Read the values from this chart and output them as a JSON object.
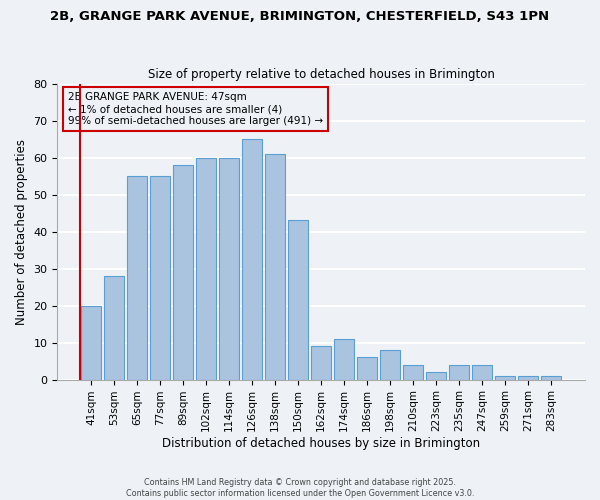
{
  "title": "2B, GRANGE PARK AVENUE, BRIMINGTON, CHESTERFIELD, S43 1PN",
  "subtitle": "Size of property relative to detached houses in Brimington",
  "xlabel": "Distribution of detached houses by size in Brimington",
  "ylabel": "Number of detached properties",
  "bar_values": [
    20,
    28,
    55,
    55,
    58,
    60,
    60,
    65,
    61,
    43,
    9,
    11,
    6,
    8,
    4,
    2,
    4,
    4,
    1,
    1,
    1
  ],
  "bin_labels": [
    "41sqm",
    "53sqm",
    "65sqm",
    "77sqm",
    "89sqm",
    "102sqm",
    "114sqm",
    "126sqm",
    "138sqm",
    "150sqm",
    "162sqm",
    "174sqm",
    "186sqm",
    "198sqm",
    "210sqm",
    "223sqm",
    "235sqm",
    "247sqm",
    "259sqm",
    "271sqm",
    "283sqm"
  ],
  "bar_color": "#aac4e0",
  "bar_edge_color": "#5a9fd4",
  "background_color": "#eef2f7",
  "grid_color": "#ffffff",
  "annotation_box_edge": "#cc0000",
  "annotation_line1": "2B GRANGE PARK AVENUE: 47sqm",
  "annotation_line2": "← 1% of detached houses are smaller (4)",
  "annotation_line3": "99% of semi-detached houses are larger (491) →",
  "marker_color": "#cc0000",
  "ylim": [
    0,
    80
  ],
  "yticks": [
    0,
    10,
    20,
    30,
    40,
    50,
    60,
    70,
    80
  ],
  "footer_line1": "Contains HM Land Registry data © Crown copyright and database right 2025.",
  "footer_line2": "Contains public sector information licensed under the Open Government Licence v3.0."
}
